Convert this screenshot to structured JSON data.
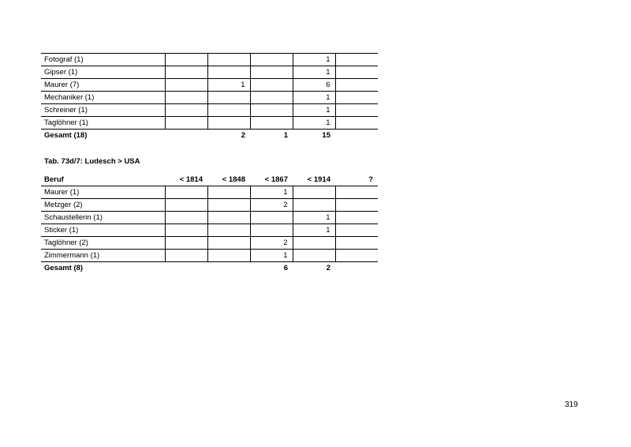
{
  "table1": {
    "rows": [
      {
        "label": "Fotograf (1)",
        "values": [
          "",
          "",
          "",
          "1",
          ""
        ]
      },
      {
        "label": "Gipser (1)",
        "values": [
          "",
          "",
          "",
          "1",
          ""
        ]
      },
      {
        "label": "Maurer (7)",
        "values": [
          "",
          "1",
          "",
          "6",
          ""
        ]
      },
      {
        "label": "Mechaniker (1)",
        "values": [
          "",
          "",
          "",
          "1",
          ""
        ]
      },
      {
        "label": "Schreiner (1)",
        "values": [
          "",
          "",
          "",
          "1",
          ""
        ]
      },
      {
        "label": "Taglöhner (1)",
        "values": [
          "",
          "",
          "",
          "1",
          ""
        ]
      }
    ],
    "total": {
      "label": "Gesamt (18)",
      "values": [
        "",
        "2",
        "1",
        "15",
        ""
      ]
    }
  },
  "table2": {
    "caption": "Tab. 73d/7: Ludesch > USA",
    "headers": [
      "Beruf",
      "< 1814",
      "< 1848",
      "< 1867",
      "< 1914",
      "?"
    ],
    "rows": [
      {
        "label": "Maurer (1)",
        "values": [
          "",
          "",
          "1",
          "",
          ""
        ]
      },
      {
        "label": "Metzger (2)",
        "values": [
          "",
          "",
          "2",
          "",
          ""
        ]
      },
      {
        "label": "Schaustellerin (1)",
        "values": [
          "",
          "",
          "",
          "1",
          ""
        ]
      },
      {
        "label": "Sticker (1)",
        "values": [
          "",
          "",
          "",
          "1",
          ""
        ]
      },
      {
        "label": "Taglöhner (2)",
        "values": [
          "",
          "",
          "2",
          "",
          ""
        ]
      },
      {
        "label": "Zimmermann (1)",
        "values": [
          "",
          "",
          "1",
          "",
          ""
        ]
      }
    ],
    "total": {
      "label": "Gesamt (8)",
      "values": [
        "",
        "",
        "6",
        "2",
        ""
      ]
    }
  },
  "page_number": "319"
}
